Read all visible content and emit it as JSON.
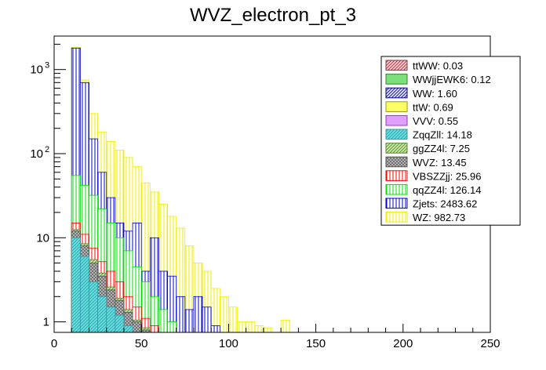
{
  "chart_data": {
    "type": "histogram-stacked",
    "title": "WVZ_electron_pt_3",
    "xlabel": "",
    "ylabel": "",
    "xlim": [
      0,
      250
    ],
    "ylim": [
      0.75,
      2500
    ],
    "yscale": "log",
    "bin_width": 5,
    "x_ticks": [
      0,
      50,
      100,
      150,
      200,
      250
    ],
    "y_ticks": [
      {
        "value": 1,
        "label": "1"
      },
      {
        "value": 10,
        "label": "10"
      },
      {
        "value": 100,
        "label": "10",
        "exp": "2"
      },
      {
        "value": 1000,
        "label": "10",
        "exp": "3"
      }
    ],
    "bin_starts": [
      10,
      15,
      20,
      25,
      30,
      35,
      40,
      45,
      50,
      55,
      60,
      65,
      70,
      75,
      80,
      85,
      90,
      95,
      100,
      105,
      110,
      115,
      120,
      125,
      130,
      135
    ],
    "stack_order": [
      "ZqqZll",
      "WVZ",
      "ggZZ4l",
      "VBSZZjj",
      "qqZZ4l",
      "Zjets",
      "WZ"
    ],
    "stack_totals": {
      "ZqqZll": [
        10,
        6,
        3,
        2,
        1.5,
        1.2,
        0.9,
        0,
        0,
        0,
        0,
        0,
        0,
        0,
        0,
        0,
        0,
        0,
        0,
        0,
        0,
        0,
        0,
        0,
        0,
        0
      ],
      "WVZ": [
        12,
        8,
        5,
        3.5,
        2.4,
        1.8,
        1.3,
        1,
        0.8,
        0,
        0,
        0,
        0,
        0,
        0,
        0,
        0,
        0,
        0,
        0,
        0,
        0,
        0,
        0,
        0,
        0
      ],
      "ggZZ4l": [
        12.5,
        8.5,
        5.5,
        3.8,
        2.6,
        1.9,
        1.4,
        1.05,
        0.85,
        0,
        0,
        0,
        0,
        0,
        0,
        0,
        0,
        0,
        0,
        0,
        0,
        0,
        0,
        0,
        0,
        0
      ],
      "VBSZZjj": [
        15,
        11,
        7.5,
        5.2,
        4,
        3,
        2,
        1.5,
        1.1,
        0.9,
        0,
        0,
        0,
        0,
        0,
        0,
        0,
        0,
        0,
        0,
        0,
        0,
        0,
        0,
        0,
        0
      ],
      "qqZZ4l": [
        55,
        42,
        32,
        22,
        15,
        10,
        7,
        4.5,
        3,
        2,
        1.4,
        1,
        0,
        0,
        0,
        0,
        0,
        0,
        0,
        0,
        0,
        0,
        0,
        0,
        0,
        0
      ],
      "Zjets": [
        1800,
        700,
        150,
        60,
        30,
        15,
        12,
        15,
        4,
        10,
        4,
        3.5,
        2,
        1.4,
        2,
        1.5,
        0.9,
        0,
        0,
        0,
        0,
        0,
        0,
        0,
        0,
        0
      ],
      "WZ": [
        1830,
        750,
        300,
        180,
        140,
        110,
        90,
        70,
        45,
        35,
        25,
        18,
        13,
        8,
        5,
        4,
        2.5,
        2,
        1.5,
        1,
        1,
        0.9,
        0,
        0,
        0,
        0
      ]
    },
    "stray_bins": [
      {
        "sample": "WZ",
        "bin_start": 120,
        "value": 0.85
      },
      {
        "sample": "WZ",
        "bin_start": 130,
        "value": 1.05
      }
    ],
    "legend_position": "top-right",
    "legend": [
      {
        "sample": "ttWW",
        "label": "ttWW: 0.03",
        "fill": "#ffc0cb",
        "hatch": "#8b3a3a",
        "pattern": "diag"
      },
      {
        "sample": "WWjjEWK6",
        "label": "WWjjEWK6: 0.12",
        "fill": "#7be07b",
        "hatch": "#2a8a2a",
        "pattern": "solid"
      },
      {
        "sample": "WW",
        "label": "WW: 1.60",
        "fill": "#dcdcff",
        "hatch": "#000080",
        "pattern": "diag"
      },
      {
        "sample": "ttW",
        "label": "ttW: 0.69",
        "fill": "#ffff66",
        "hatch": "#999900",
        "pattern": "solid"
      },
      {
        "sample": "VVV",
        "label": "VVV: 0.55",
        "fill": "#e0a0ff",
        "hatch": "#9933cc",
        "pattern": "solid"
      },
      {
        "sample": "ZqqZll",
        "label": "ZqqZll: 14.18",
        "fill": "#66e0e0",
        "hatch": "#3399aa",
        "pattern": "diag"
      },
      {
        "sample": "ggZZ4l",
        "label": "ggZZ4l: 7.25",
        "fill": "#c8e8a0",
        "hatch": "#558833",
        "pattern": "diag"
      },
      {
        "sample": "WVZ",
        "label": "WVZ: 13.45",
        "fill": "#c0c0c0",
        "hatch": "#555555",
        "pattern": "cross"
      },
      {
        "sample": "VBSZZjj",
        "label": "VBSZZjj: 25.96",
        "fill": "#ffffff",
        "hatch": "#ff0000",
        "pattern": "vert"
      },
      {
        "sample": "qqZZ4l",
        "label": "qqZZ4l: 126.14",
        "fill": "#ffffff",
        "hatch": "#00dd00",
        "pattern": "vert"
      },
      {
        "sample": "Zjets",
        "label": "Zjets: 2483.62",
        "fill": "#ffffff",
        "hatch": "#0000cc",
        "pattern": "vert"
      },
      {
        "sample": "WZ",
        "label": "WZ: 982.73",
        "fill": "#ffffff",
        "hatch": "#eeee00",
        "pattern": "vert"
      }
    ]
  }
}
